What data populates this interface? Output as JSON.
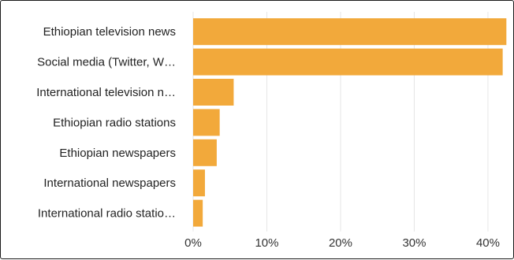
{
  "chart_data": {
    "type": "bar",
    "orientation": "horizontal",
    "categories": [
      "Ethiopian television news",
      "Social media (Twitter, W…",
      "International television n…",
      "Ethiopian radio stations",
      "Ethiopian newspapers",
      "International newspapers",
      "International radio statio…"
    ],
    "values": [
      42.5,
      42.0,
      5.5,
      3.6,
      3.2,
      1.6,
      1.3
    ],
    "unit": "%",
    "xlim": [
      0,
      43
    ],
    "x_ticks": [
      0,
      10,
      20,
      30,
      40
    ],
    "x_tick_labels": [
      "0%",
      "10%",
      "20%",
      "30%",
      "40%"
    ],
    "grid": "vertical",
    "legend": "none",
    "bar_color": "#F2A93B",
    "grid_color": "#e6e6e6"
  }
}
